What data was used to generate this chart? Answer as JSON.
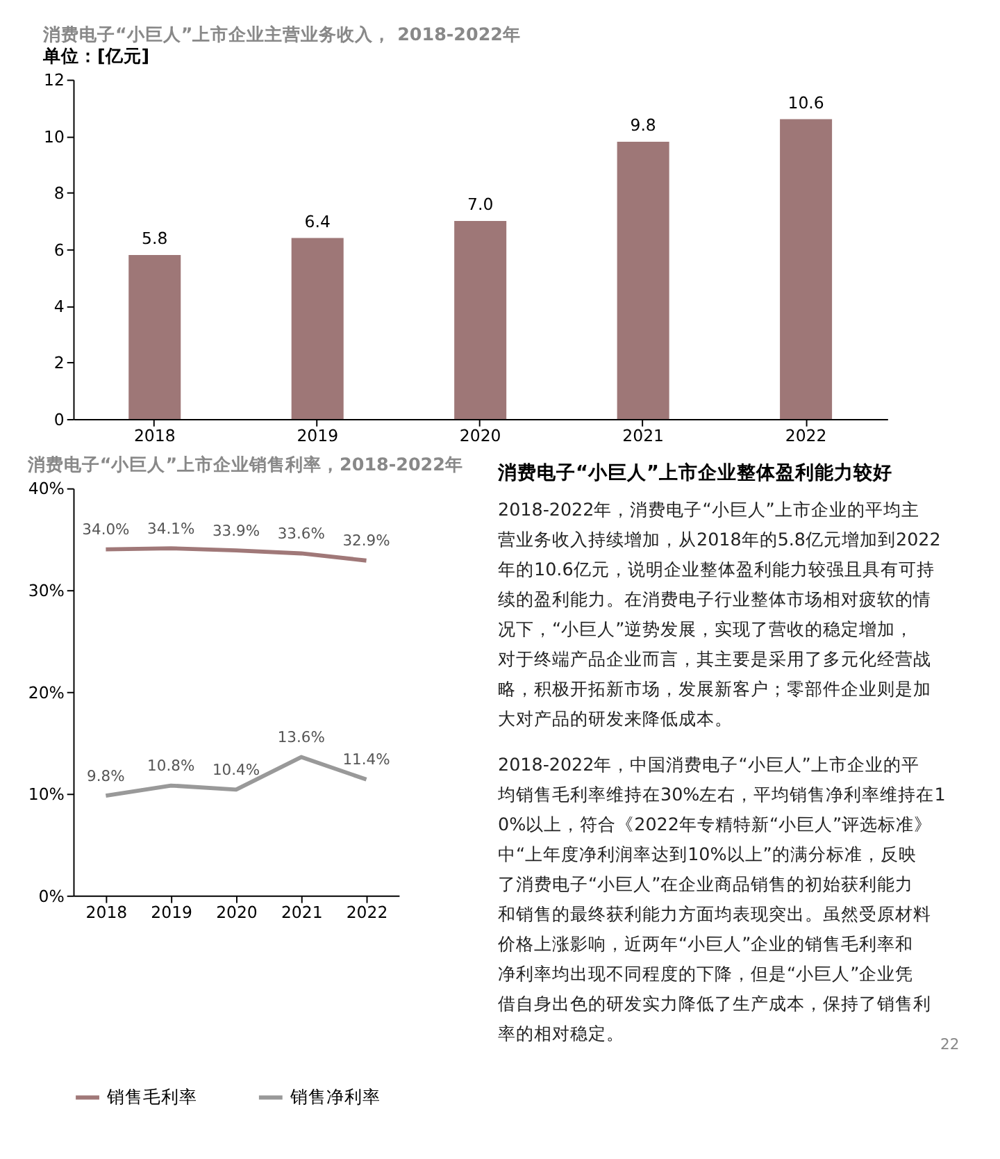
{
  "chart_data": [
    {
      "type": "bar",
      "title": "消费电子“小巨人”上市企业主营业务收入，  2018-2022年",
      "subtitle": "单位：[亿元]",
      "categories": [
        "2018",
        "2019",
        "2020",
        "2021",
        "2022"
      ],
      "values": [
        5.8,
        6.4,
        7.0,
        9.8,
        10.6
      ],
      "value_labels": [
        "5.8",
        "6.4",
        "7.0",
        "9.8",
        "10.6"
      ],
      "color": "#9e7777",
      "ylim": [
        0,
        12
      ],
      "yticks": [
        0,
        2,
        4,
        6,
        8,
        10,
        12
      ],
      "grid": false
    },
    {
      "type": "line",
      "title": "消费电子“小巨人”上市企业销售利率，2018-2022年",
      "categories": [
        "2018",
        "2019",
        "2020",
        "2021",
        "2022"
      ],
      "series": [
        {
          "name": "销售毛利率",
          "color": "#a07878",
          "values": [
            34.0,
            34.1,
            33.9,
            33.6,
            32.9
          ],
          "value_labels": [
            "34.0%",
            "34.1%",
            "33.9%",
            "33.6%",
            "32.9%"
          ]
        },
        {
          "name": "销售净利率",
          "color": "#999999",
          "values": [
            9.8,
            10.8,
            10.4,
            13.6,
            11.4
          ],
          "value_labels": [
            "9.8%",
            "10.8%",
            "10.4%",
            "13.6%",
            "11.4%"
          ]
        }
      ],
      "ylim": [
        0,
        40
      ],
      "yticks": [
        {
          "value": 0,
          "label": "0%"
        },
        {
          "value": 10,
          "label": "10%"
        },
        {
          "value": 20,
          "label": "20%"
        },
        {
          "value": 30,
          "label": "30%"
        },
        {
          "value": 40,
          "label": "40%"
        }
      ],
      "grid": false,
      "legend": "bottom",
      "marker": "none",
      "line_style": "solid"
    },
    {
      "type": "other",
      "title": "消费电子“小巨人”上市企业整体盈利能力较好",
      "annotations": [
        "2018-2022年，消费电子“小巨人”上市企业的平均主营业务收入持续增加，从2018年的5.8亿元增加到2022年的10.6亿元，说明企业整体盈利能力较强且具有可持续的盈利能力。在消费电子行业整体市场相对疲软的情况下，“小巨人”逆势发展，实现了营收的稳定增加，对于终端产品企业而言，其主要是采用了多元化经营战略，积极开拓新市场，发展新客户；零部件企业则是加大对产品的研发来降低成本。",
        "2018-2022年，中国消费电子“小巨人”上市企业的平均销售毛利率维持在30%左右，平均销售净利率维持在10%以上，符合《2022年专精特新“小巨人”评选标准》中“上年度净利润率达到10%以上”的满分标准，反映了消费电子“小巨人”在企业商品销售的初始获利能力和销售的最终获利能力方面均表现突出。虽然受原材料价格上涨影响，近两年“小巨人”企业的销售毛利率和净利率均出现不同程度的下降，但是“小巨人”企业凭借自身出色的研发实力降低了生产成本，保持了销售利率的相对稳定。",
        "22"
      ]
    }
  ]
}
